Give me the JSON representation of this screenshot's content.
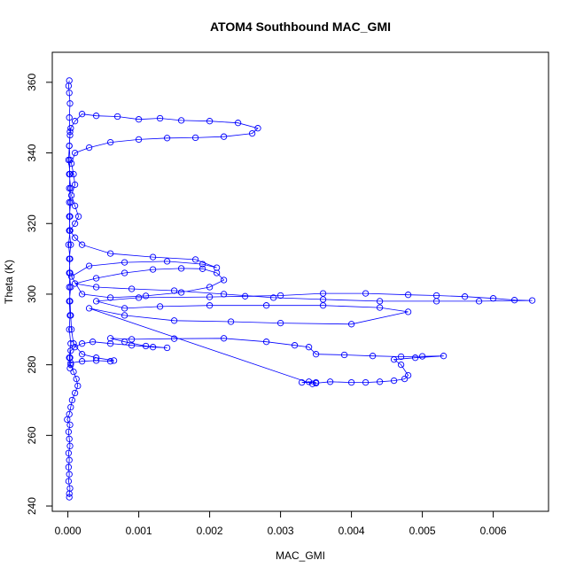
{
  "chart_data": {
    "type": "scatter",
    "title": "ATOM4 Southbound MAC_GMI",
    "xlabel": "MAC_GMI",
    "ylabel": "Theta (K)",
    "xlim": [
      -0.00022,
      0.00678
    ],
    "ylim": [
      238.5,
      368.5
    ],
    "x_ticks": [
      0.0,
      0.001,
      0.002,
      0.003,
      0.004,
      0.005,
      0.006
    ],
    "x_tick_labels": [
      "0.000",
      "0.001",
      "0.002",
      "0.003",
      "0.004",
      "0.005",
      "0.006"
    ],
    "y_ticks": [
      240,
      260,
      280,
      300,
      320,
      340,
      360
    ],
    "y_tick_labels": [
      "240",
      "260",
      "280",
      "300",
      "320",
      "340",
      "360"
    ],
    "grid": false,
    "marker": "open-circle",
    "line": true,
    "color": "#0000ff",
    "series": [
      {
        "points": [
          [
            2e-05,
            242.5
          ],
          [
            2e-05,
            243.5
          ],
          [
            3e-05,
            245
          ],
          [
            1e-05,
            247
          ],
          [
            2e-05,
            249
          ],
          [
            1e-05,
            251
          ],
          [
            2e-05,
            253
          ],
          [
            1e-05,
            255
          ],
          [
            3e-05,
            257
          ],
          [
            2e-05,
            259
          ],
          [
            1e-05,
            261
          ],
          [
            3e-05,
            263
          ],
          [
            -1e-05,
            264.5
          ],
          [
            2e-05,
            266
          ],
          [
            4e-05,
            268
          ],
          [
            6e-05,
            270
          ],
          [
            0.0001,
            272
          ],
          [
            0.00014,
            274
          ],
          [
            0.00012,
            276
          ],
          [
            8e-05,
            278
          ],
          [
            4e-05,
            280
          ],
          [
            3e-05,
            282
          ],
          [
            4e-05,
            284
          ],
          [
            0.0001,
            285
          ],
          [
            0.0002,
            286
          ],
          [
            0.00035,
            286.5
          ],
          [
            0.0006,
            286
          ],
          [
            0.0009,
            285.5
          ],
          [
            0.0012,
            285
          ],
          [
            0.0014,
            284.8
          ],
          [
            0.0011,
            285.3
          ],
          [
            0.0008,
            286.5
          ],
          [
            0.0006,
            287.5
          ],
          [
            0.0009,
            287.2
          ],
          [
            0.0015,
            287.4
          ],
          [
            0.0022,
            287.5
          ],
          [
            0.0028,
            286.5
          ],
          [
            0.0032,
            285.5
          ],
          [
            0.0034,
            285
          ],
          [
            0.0035,
            283
          ],
          [
            0.0039,
            282.8
          ],
          [
            0.0043,
            282.5
          ],
          [
            0.0047,
            282.3
          ],
          [
            0.005,
            282.4
          ],
          [
            0.0053,
            282.5
          ],
          [
            0.0049,
            282
          ],
          [
            0.0046,
            281.5
          ],
          [
            0.0047,
            280
          ],
          [
            0.0048,
            277
          ],
          [
            0.00475,
            276
          ],
          [
            0.0046,
            275.5
          ],
          [
            0.0044,
            275.2
          ],
          [
            0.0042,
            275
          ],
          [
            0.004,
            275
          ],
          [
            0.0037,
            275.2
          ],
          [
            0.0035,
            274.8
          ],
          [
            0.0034,
            275.2
          ],
          [
            0.0033,
            275
          ],
          [
            0.0035,
            275
          ],
          [
            0.00345,
            274.6
          ],
          [
            0.0003,
            296
          ],
          [
            0.0008,
            294
          ],
          [
            0.0015,
            292.5
          ],
          [
            0.0023,
            292.2
          ],
          [
            0.003,
            291.8
          ],
          [
            0.004,
            291.5
          ],
          [
            0.0048,
            295
          ],
          [
            0.0044,
            296.2
          ],
          [
            0.0036,
            296.8
          ],
          [
            0.0028,
            296.8
          ],
          [
            0.002,
            296.8
          ],
          [
            0.0013,
            296.5
          ],
          [
            0.0008,
            296
          ],
          [
            0.0004,
            298
          ],
          [
            0.001,
            299
          ],
          [
            0.002,
            299.2
          ],
          [
            0.0025,
            299.4
          ],
          [
            0.003,
            299.6
          ],
          [
            0.0036,
            300.2
          ],
          [
            0.0042,
            300.2
          ],
          [
            0.0048,
            299.8
          ],
          [
            0.0052,
            299.6
          ],
          [
            0.0056,
            299.3
          ],
          [
            0.006,
            298.8
          ],
          [
            0.0063,
            298.3
          ],
          [
            0.00655,
            298.2
          ],
          [
            0.0058,
            298
          ],
          [
            0.0052,
            298
          ],
          [
            0.0044,
            298
          ],
          [
            0.0036,
            298.5
          ],
          [
            0.0029,
            299
          ],
          [
            0.0022,
            300
          ],
          [
            0.0015,
            301
          ],
          [
            0.0009,
            301.5
          ],
          [
            0.0004,
            302
          ],
          [
            0.0001,
            303
          ],
          [
            0.0004,
            304.5
          ],
          [
            0.0008,
            306
          ],
          [
            0.0012,
            307
          ],
          [
            0.0016,
            307.3
          ],
          [
            0.0019,
            307.2
          ],
          [
            0.0021,
            306
          ],
          [
            0.0022,
            304
          ],
          [
            0.002,
            302
          ],
          [
            0.0016,
            300.5
          ],
          [
            0.0011,
            299.5
          ],
          [
            0.0006,
            299
          ],
          [
            0.0002,
            300
          ],
          [
            5e-05,
            305
          ],
          [
            0.0003,
            308
          ],
          [
            0.0008,
            309
          ],
          [
            0.0014,
            309.3
          ],
          [
            0.0019,
            308.5
          ],
          [
            0.0021,
            307.5
          ],
          [
            0.0018,
            309.8
          ],
          [
            0.0012,
            310.5
          ],
          [
            0.0006,
            311.5
          ],
          [
            0.0002,
            314
          ],
          [
            0.0001,
            316
          ],
          [
            3e-05,
            318
          ],
          [
            0.0001,
            320
          ],
          [
            0.00015,
            322
          ],
          [
            0.0001,
            325
          ],
          [
            5e-05,
            328
          ],
          [
            0.0001,
            331
          ],
          [
            8e-05,
            334
          ],
          [
            5e-05,
            337
          ],
          [
            0.0001,
            340
          ],
          [
            0.0003,
            341.5
          ],
          [
            0.0006,
            343
          ],
          [
            0.001,
            343.8
          ],
          [
            0.0014,
            344.2
          ],
          [
            0.0018,
            344.3
          ],
          [
            0.0022,
            344.6
          ],
          [
            0.0026,
            345.5
          ],
          [
            0.00268,
            347
          ],
          [
            0.0024,
            348.5
          ],
          [
            0.002,
            349
          ],
          [
            0.0016,
            349.2
          ],
          [
            0.0013,
            349.8
          ],
          [
            0.001,
            349.5
          ],
          [
            0.0007,
            350.3
          ],
          [
            0.0004,
            350.5
          ],
          [
            0.0002,
            351
          ],
          [
            0.0001,
            349
          ],
          [
            4e-05,
            347
          ],
          [
            3e-05,
            345
          ],
          [
            2e-05,
            342
          ],
          [
            1e-05,
            338
          ],
          [
            3e-05,
            334
          ],
          [
            2e-05,
            330
          ],
          [
            4e-05,
            326
          ],
          [
            2e-05,
            322
          ],
          [
            3e-05,
            318
          ],
          [
            1e-05,
            314
          ],
          [
            3e-05,
            310
          ],
          [
            2e-05,
            306
          ],
          [
            4e-05,
            302
          ],
          [
            2e-05,
            298
          ],
          [
            3e-05,
            294
          ],
          [
            2e-05,
            290
          ],
          [
            4e-05,
            286
          ],
          [
            2e-05,
            282
          ],
          [
            3e-05,
            279
          ],
          [
            4e-05,
            280.5
          ],
          [
            0.0002,
            281
          ],
          [
            0.0004,
            281.2
          ],
          [
            0.0006,
            281
          ],
          [
            0.00065,
            281.2
          ],
          [
            0.0004,
            282
          ],
          [
            0.0002,
            283
          ],
          [
            8e-05,
            286
          ],
          [
            5e-05,
            290
          ],
          [
            4e-05,
            294
          ],
          [
            3e-05,
            298
          ],
          [
            2e-05,
            302
          ],
          [
            3e-05,
            306
          ],
          [
            2e-05,
            310
          ],
          [
            4e-05,
            314
          ],
          [
            2e-05,
            318
          ],
          [
            3e-05,
            322
          ],
          [
            2e-05,
            326
          ],
          [
            4e-05,
            330
          ],
          [
            2e-05,
            334
          ],
          [
            3e-05,
            338
          ],
          [
            2e-05,
            342
          ],
          [
            3e-05,
            346
          ],
          [
            2e-05,
            350
          ],
          [
            3e-05,
            354
          ],
          [
            2e-05,
            357
          ],
          [
            1e-05,
            359
          ],
          [
            2e-05,
            360.5
          ]
        ]
      }
    ]
  }
}
